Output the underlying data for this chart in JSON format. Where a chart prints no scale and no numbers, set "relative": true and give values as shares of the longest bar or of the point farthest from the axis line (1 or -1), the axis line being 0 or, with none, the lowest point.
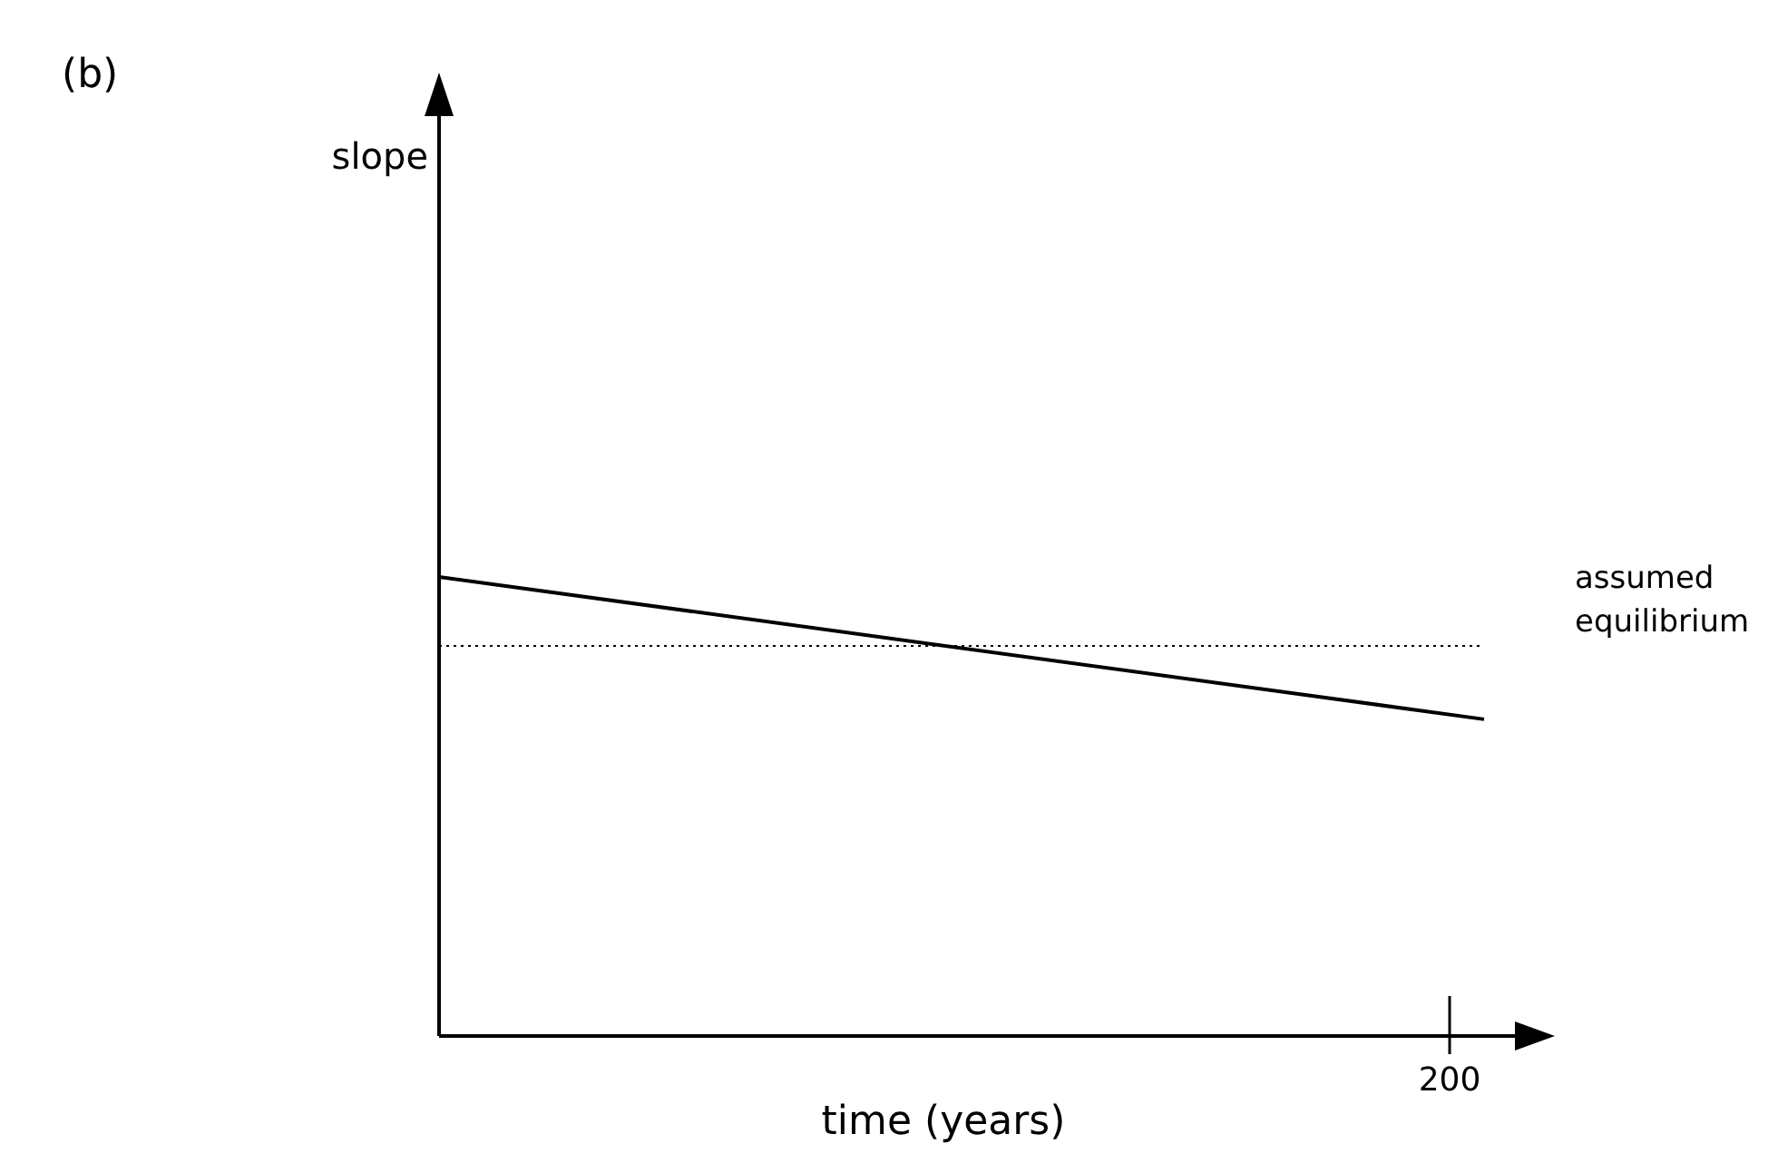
{
  "chart_data": {
    "type": "line",
    "xlabel": "time (years)",
    "annotations": [
      "(b)",
      "200",
      "slope"
    ],
    "relative": true,
    "categories": [
      null,
      null
    ],
    "marker": "none",
    "series": [
      {
        "color": "#000000",
        "values": [
          1,
          0.69
        ],
        "line_style": "solid"
      },
      {
        "name": "assumed equilibrium",
        "color": "#000000",
        "values": [
          0.85,
          0.85
        ],
        "line_style": "dotted"
      }
    ]
  }
}
